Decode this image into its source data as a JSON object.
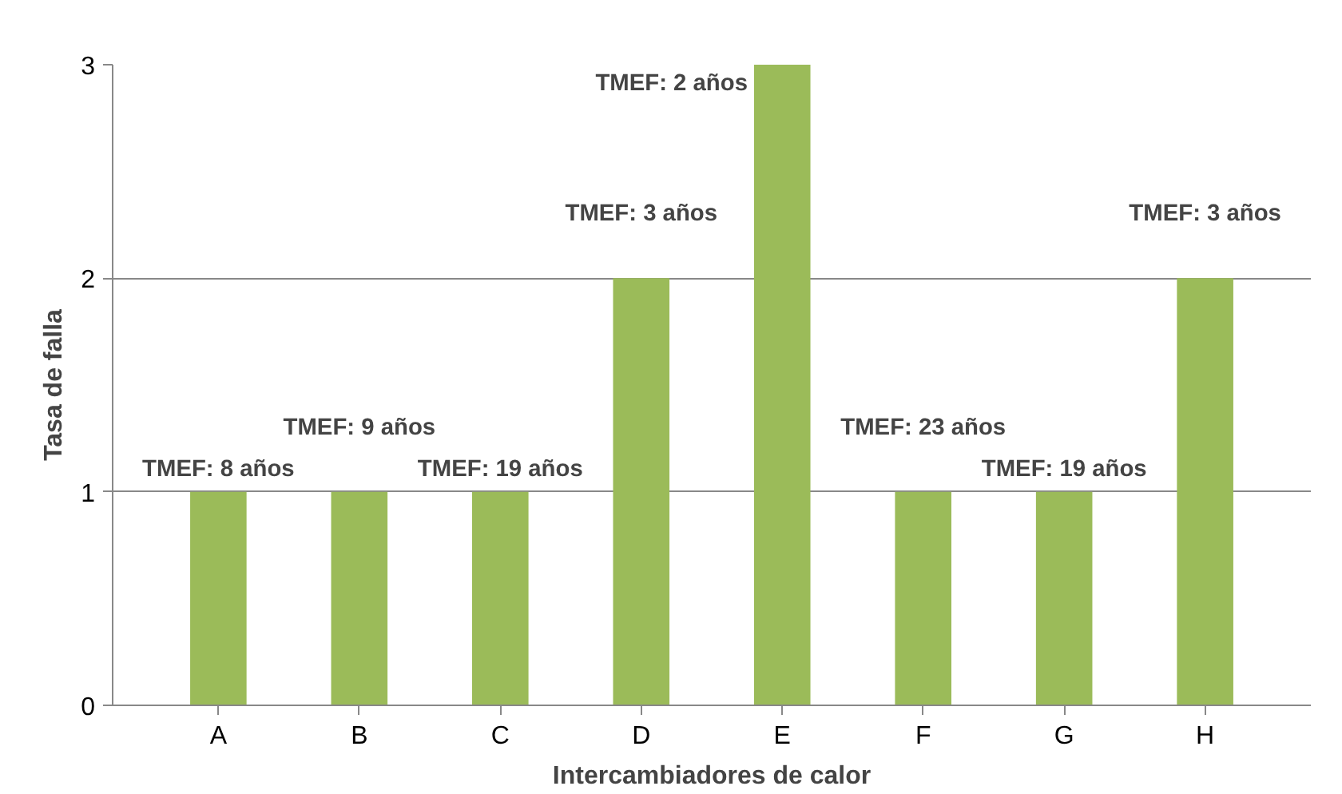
{
  "chart_data": {
    "type": "bar",
    "xlabel": "Intercambiadores de calor",
    "ylabel": "Tasa de falla",
    "categories": [
      "A",
      "B",
      "C",
      "D",
      "E",
      "F",
      "G",
      "H"
    ],
    "values": [
      1,
      1,
      1,
      2,
      3,
      1,
      1,
      2
    ],
    "color": "#9bbb59",
    "ylim": [
      0,
      3
    ],
    "yticks": [
      0,
      1,
      2,
      3
    ],
    "grid": "y",
    "annotations": [
      "TMEF: 8 años",
      "TMEF: 9 años",
      "TMEF: 19 años",
      "TMEF: 3 años",
      "TMEF: 2 años",
      "TMEF: 23 años",
      "TMEF: 19 años",
      "TMEF: 3 años"
    ]
  }
}
